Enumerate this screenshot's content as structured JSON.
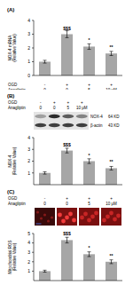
{
  "chart_data": [
    {
      "type": "bar",
      "label": "(A)",
      "y_label": [
        "NOX-4 mRNA",
        "(Relative Value)"
      ],
      "conditions": {
        "rows": [
          "OGD",
          "Anagliptin"
        ],
        "values": [
          [
            "-",
            "+",
            "+",
            "+"
          ],
          [
            "0",
            "0",
            "5",
            "10 μM"
          ]
        ]
      },
      "values": [
        1.0,
        3.0,
        2.1,
        1.6
      ],
      "errors": [
        0.1,
        0.25,
        0.2,
        0.15
      ],
      "annotations": [
        null,
        "$$$",
        "*",
        "**"
      ],
      "color": "#a6a6a6",
      "ylim": [
        0,
        4
      ],
      "yticks": [
        0,
        1,
        2,
        3,
        4
      ]
    },
    {
      "type": "bar",
      "label": "(B)",
      "y_label": [
        "NOX-4",
        "(Relative Value)"
      ],
      "conditions": {
        "rows": [
          "OGD",
          "Anagliptin"
        ],
        "values": [
          [
            "-",
            "+",
            "+",
            "+"
          ],
          [
            "0",
            "0",
            "5",
            "10 μM"
          ]
        ]
      },
      "blot": [
        {
          "name": "NOX-4",
          "size": "64 KD"
        },
        {
          "name": "β-actin",
          "size": "43 KD"
        }
      ],
      "values": [
        1.0,
        2.9,
        2.0,
        1.4
      ],
      "errors": [
        0.1,
        0.2,
        0.2,
        0.15
      ],
      "annotations": [
        null,
        "$$$",
        "*",
        "**"
      ],
      "color": "#a6a6a6",
      "ylim": [
        0,
        4
      ],
      "yticks": [
        0,
        1,
        2,
        3,
        4
      ]
    },
    {
      "type": "bar",
      "label": "(C)",
      "y_label": [
        "Mitochondrial ROS",
        "(Relative Value)"
      ],
      "conditions": {
        "rows": [
          "OGD",
          "Anagliptin"
        ],
        "values": [
          [
            "-",
            "+",
            "+",
            "+"
          ],
          [
            "0",
            "0",
            "5",
            "10 μM"
          ]
        ]
      },
      "values": [
        1.0,
        4.3,
        2.8,
        2.0
      ],
      "errors": [
        0.1,
        0.3,
        0.25,
        0.2
      ],
      "annotations": [
        null,
        "$$$",
        "*",
        "**"
      ],
      "color": "#a6a6a6",
      "ylim": [
        0,
        5
      ],
      "yticks": [
        0,
        1,
        2,
        3,
        4,
        5
      ]
    }
  ]
}
